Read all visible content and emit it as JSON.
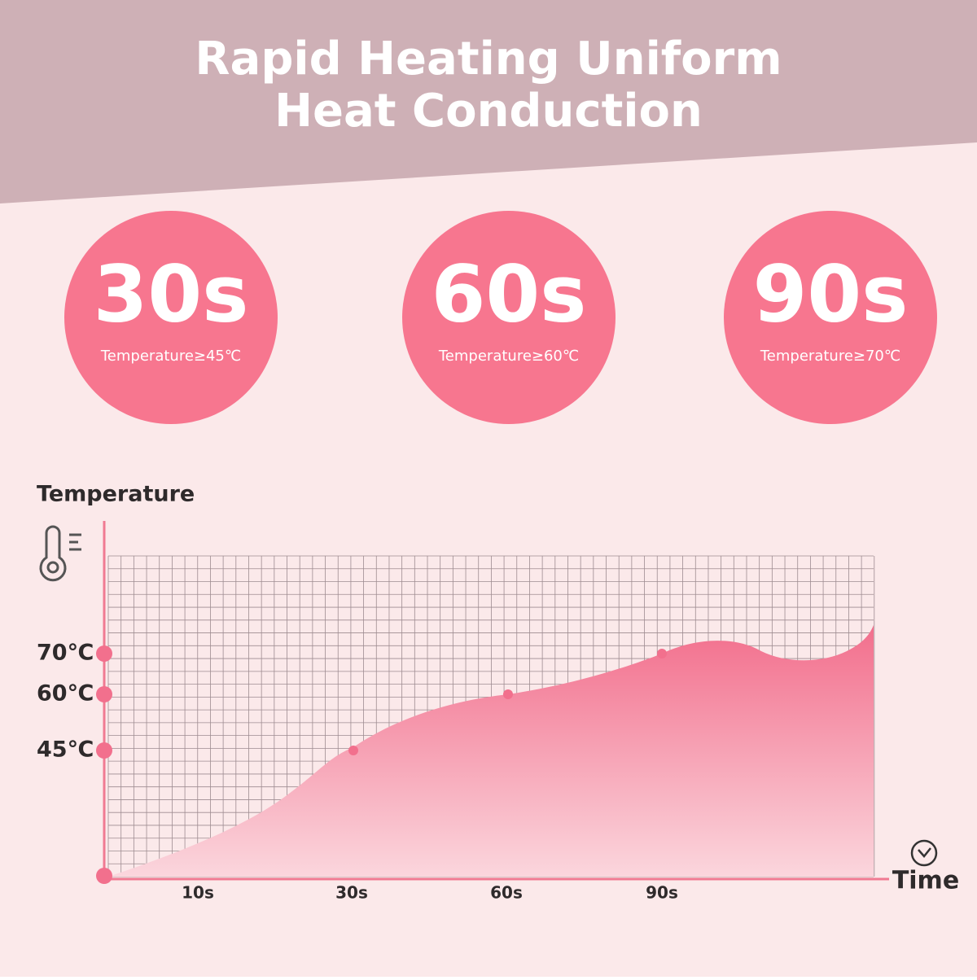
{
  "header": {
    "title_lines": [
      "Rapid Heating Uniform",
      "Heat Conduction"
    ]
  },
  "badges": [
    {
      "time": "30s",
      "caption": "Temperature≥45℃"
    },
    {
      "time": "60s",
      "caption": "Temperature≥60℃"
    },
    {
      "time": "90s",
      "caption": "Temperature≥70℃"
    }
  ],
  "graph": {
    "y_title": "Temperature",
    "x_title": "Time",
    "y_labels": [
      "70℃",
      "60℃",
      "45℃"
    ],
    "x_labels": [
      "10s",
      "30s",
      "60s",
      "90s"
    ]
  }
}
